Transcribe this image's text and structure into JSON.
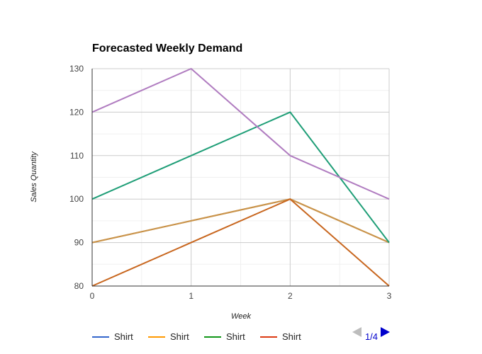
{
  "chart_data": {
    "type": "line",
    "title": "Forecasted Weekly Demand",
    "xlabel": "Week",
    "ylabel": "Sales Quantity",
    "x": [
      0,
      1,
      2,
      3
    ],
    "xlim": [
      0,
      3
    ],
    "ylim": [
      80,
      130
    ],
    "xticks": [
      "0",
      "1",
      "2",
      "3"
    ],
    "yticks": [
      "80",
      "90",
      "100",
      "110",
      "120",
      "130"
    ],
    "grid": true,
    "legend_position": "bottom",
    "series": [
      {
        "name": "Shirt",
        "color": "#3366cc",
        "values": [
          90,
          95,
          100,
          90
        ]
      },
      {
        "name": "Shirt",
        "color": "#ff9900",
        "values": [
          90,
          95,
          100,
          90
        ]
      },
      {
        "name": "Shirt",
        "color": "#109618",
        "values": [
          100,
          110,
          120,
          90
        ]
      },
      {
        "name": "Shirt",
        "color": "#dc3912",
        "values": [
          80,
          90,
          100,
          80
        ]
      },
      {
        "name": "",
        "color": "#990099",
        "values": [
          120,
          130,
          110,
          100
        ]
      }
    ],
    "rendered_colors": [
      "#c9934a",
      "#c9934a",
      "#1f9e77",
      "#c8661e",
      "#b07cc0"
    ]
  },
  "legend": {
    "visible_series": [
      0,
      1,
      2,
      3
    ],
    "pager_text": "1/4"
  }
}
